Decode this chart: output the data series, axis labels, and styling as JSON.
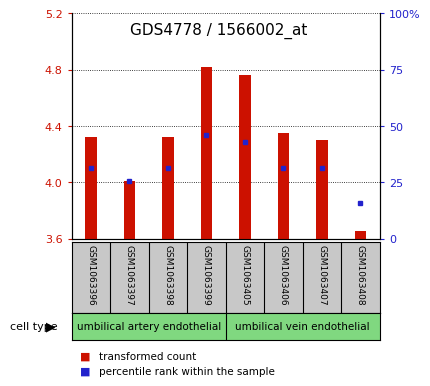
{
  "title": "GDS4778 / 1566002_at",
  "samples": [
    "GSM1063396",
    "GSM1063397",
    "GSM1063398",
    "GSM1063399",
    "GSM1063405",
    "GSM1063406",
    "GSM1063407",
    "GSM1063408"
  ],
  "red_bar_top": [
    4.32,
    4.01,
    4.32,
    4.82,
    4.76,
    4.35,
    4.3,
    3.65
  ],
  "red_bar_bottom": 3.6,
  "blue_marker_y": [
    4.1,
    4.01,
    4.1,
    4.335,
    4.285,
    4.1,
    4.1,
    3.855
  ],
  "ylim": [
    3.6,
    5.2
  ],
  "yticks_left": [
    3.6,
    4.0,
    4.4,
    4.8,
    5.2
  ],
  "yticks_right_vals": [
    0,
    25,
    50,
    75,
    100
  ],
  "yticks_right_labels": [
    "0",
    "25",
    "50",
    "75",
    "100%"
  ],
  "cell_type_groups": [
    {
      "label": "umbilical artery endothelial",
      "start": 0,
      "end": 3
    },
    {
      "label": "umbilical vein endothelial",
      "start": 4,
      "end": 7
    }
  ],
  "cell_type_label": "cell type",
  "legend_red": "transformed count",
  "legend_blue": "percentile rank within the sample",
  "red_color": "#CC1100",
  "blue_color": "#2222CC",
  "bar_width": 0.3,
  "grid_color": "black",
  "bg_gray": "#C8C8C8",
  "bg_green": "#80D880",
  "title_fontsize": 11
}
